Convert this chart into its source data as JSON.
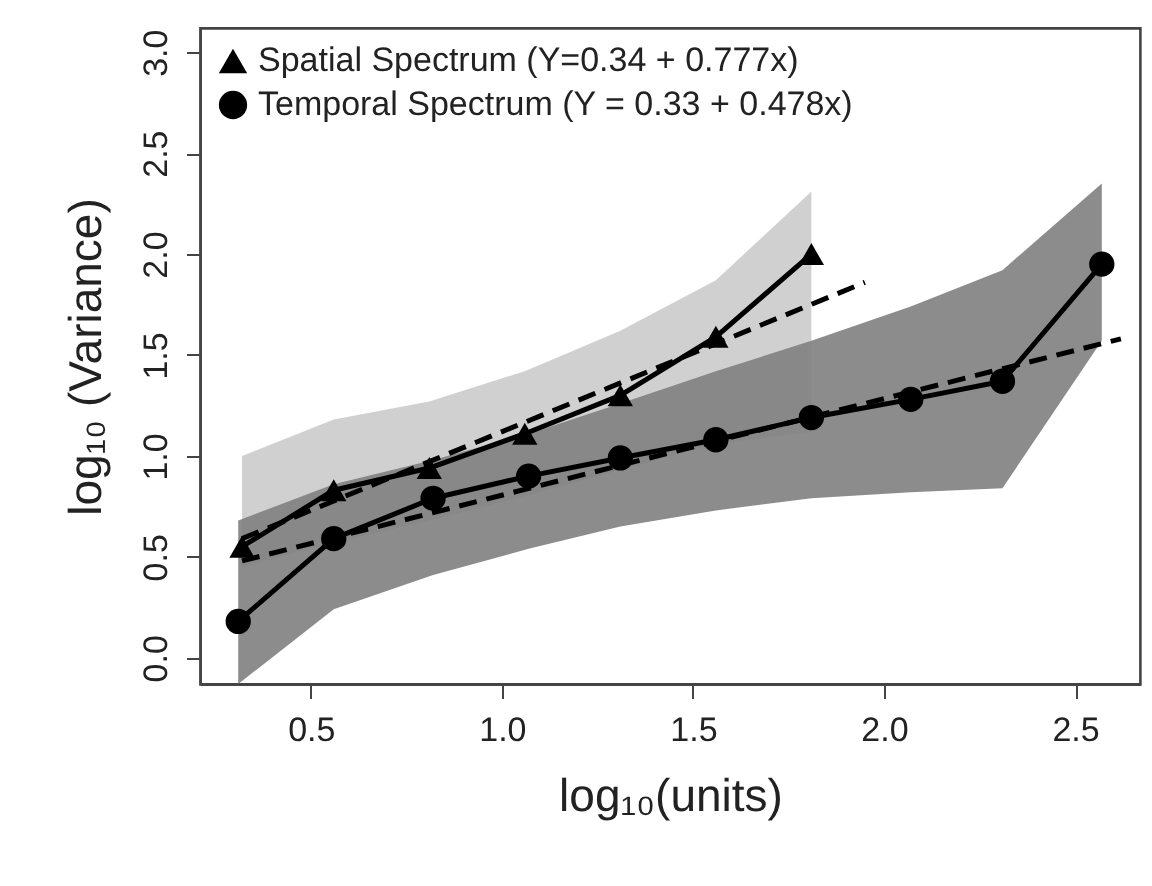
{
  "chart_data": {
    "type": "line",
    "xlabel": "log₁₀(units)",
    "ylabel": "log₁₀ (Variance)",
    "xlim": [
      0.21,
      2.67
    ],
    "xticks": [
      0.5,
      {
        "value": 1,
        "label": "1.0"
      },
      1.5,
      {
        "value": 2,
        "label": "2.0"
      },
      2.5
    ],
    "ylim": [
      -0.13,
      3.12
    ],
    "yticks": [
      {
        "value": 0,
        "label": "0.0"
      },
      0.5,
      {
        "value": 1,
        "label": "1.0"
      },
      1.5,
      {
        "value": 2,
        "label": "2.0"
      },
      2.5,
      {
        "value": 3,
        "label": "3.0"
      }
    ],
    "grid": false,
    "legend": "top left",
    "line_style": "solid",
    "series": [
      {
        "name": "Spatial Spectrum (Y=0.34 + 0.777x)",
        "color": "#000000",
        "marker": "triangle",
        "x": [
          0.32,
          0.56,
          0.81,
          1.06,
          1.31,
          1.56,
          1.81
        ],
        "values": [
          0.55,
          0.83,
          0.94,
          1.11,
          1.3,
          1.59,
          2.0
        ],
        "lower": [
          0.45,
          0.57,
          0.68,
          0.8,
          0.93,
          1.06,
          1.12
        ],
        "upper": [
          1.0,
          1.18,
          1.27,
          1.42,
          1.62,
          1.87,
          2.31
        ]
      },
      {
        "name": "Temporal Spectrum (Y = 0.33 + 0.478x)",
        "color": "#000000",
        "marker": "circle",
        "x": [
          0.31,
          0.56,
          0.82,
          1.07,
          1.31,
          1.56,
          1.81,
          2.07,
          2.31,
          2.57
        ],
        "values": [
          0.18,
          0.59,
          0.79,
          0.9,
          0.99,
          1.08,
          1.19,
          1.28,
          1.37,
          1.95
        ],
        "lower": [
          -0.13,
          0.24,
          0.41,
          0.54,
          0.65,
          0.73,
          0.79,
          0.82,
          0.84,
          1.57
        ],
        "upper": [
          0.68,
          0.86,
          0.98,
          1.11,
          1.26,
          1.42,
          1.57,
          1.74,
          1.92,
          2.35
        ]
      },
      {
        "type": "line",
        "color": "#000000",
        "line_style": "dashed",
        "marker": "none",
        "x": [
          0.32,
          1.95
        ],
        "values": [
          0.59,
          1.86
        ]
      },
      {
        "type": "line",
        "color": "#000000",
        "line_style": "dashed",
        "marker": "none",
        "x": [
          0.32,
          2.62
        ],
        "values": [
          0.48,
          1.58
        ]
      }
    ]
  }
}
